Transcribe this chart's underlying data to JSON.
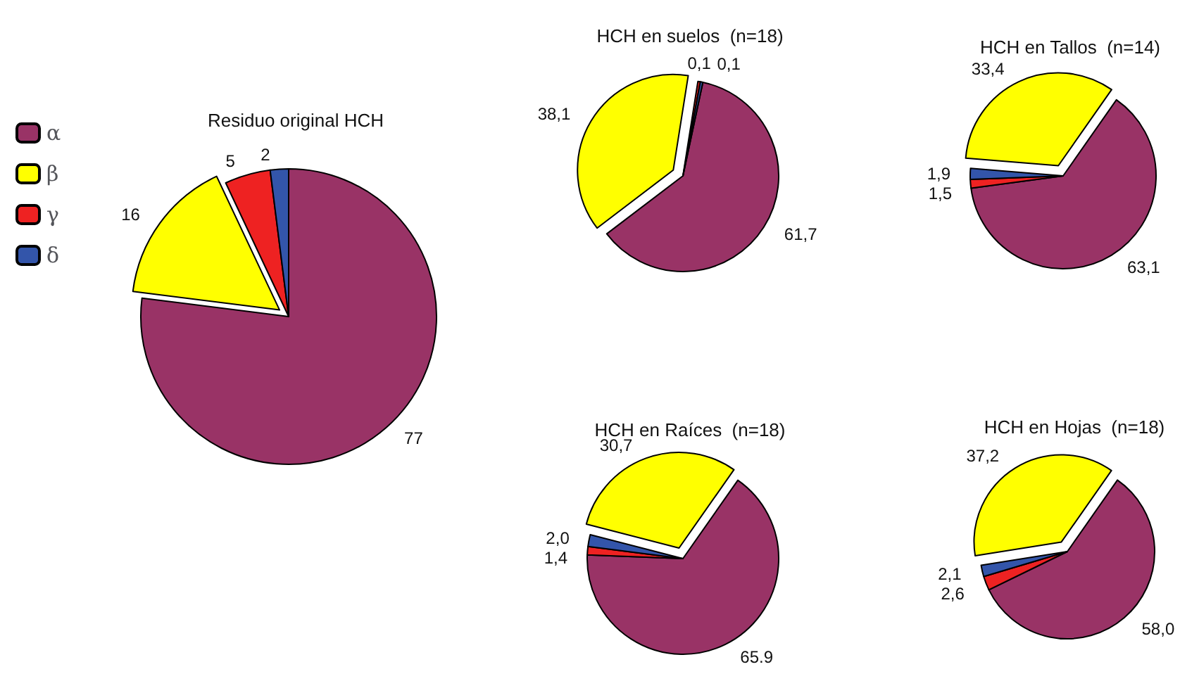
{
  "chart_data": [
    {
      "type": "pie",
      "title": "Residuo original HCH",
      "categories": [
        "α",
        "β",
        "γ",
        "δ"
      ],
      "values": [
        77,
        16,
        5,
        2
      ],
      "colors": [
        "#993366",
        "#ffff00",
        "#ee2222",
        "#3355aa"
      ],
      "value_labels": [
        "77",
        "16",
        "5",
        "2"
      ],
      "legend": "left"
    },
    {
      "type": "pie",
      "title": "HCH en suelos  (n=18)",
      "categories": [
        null,
        null,
        null,
        null
      ],
      "values": [
        61.7,
        38.1,
        0.1,
        0.1
      ],
      "colors": [
        "#993366",
        "#ffff00",
        "#ee2222",
        "#3355aa"
      ],
      "value_labels": [
        "61,7",
        "38,1",
        "0,1",
        "0,1"
      ]
    },
    {
      "type": "pie",
      "title": "HCH en Tallos  (n=14)",
      "categories": [
        null,
        null,
        null,
        null
      ],
      "values": [
        63.1,
        1.5,
        1.9,
        33.4
      ],
      "colors": [
        "#993366",
        "#ee2222",
        "#3355aa",
        "#ffff00"
      ],
      "value_labels": [
        "63,1",
        "1,5",
        "1,9",
        "33,4"
      ]
    },
    {
      "type": "pie",
      "title": "HCH en Raíces  (n=18)",
      "categories": [
        null,
        null,
        null,
        null
      ],
      "values": [
        65.9,
        1.4,
        2.0,
        30.7
      ],
      "colors": [
        "#993366",
        "#ee2222",
        "#3355aa",
        "#ffff00"
      ],
      "value_labels": [
        "65.9",
        "1,4",
        "2,0",
        "30,7"
      ]
    },
    {
      "type": "pie",
      "title": "HCH en Hojas  (n=18)",
      "categories": [
        null,
        null,
        null,
        null
      ],
      "values": [
        58.0,
        2.6,
        2.1,
        37.2
      ],
      "colors": [
        "#993366",
        "#ee2222",
        "#3355aa",
        "#ffff00"
      ],
      "value_labels": [
        "58,0",
        "2,6",
        "2,1",
        "37,2"
      ]
    }
  ]
}
